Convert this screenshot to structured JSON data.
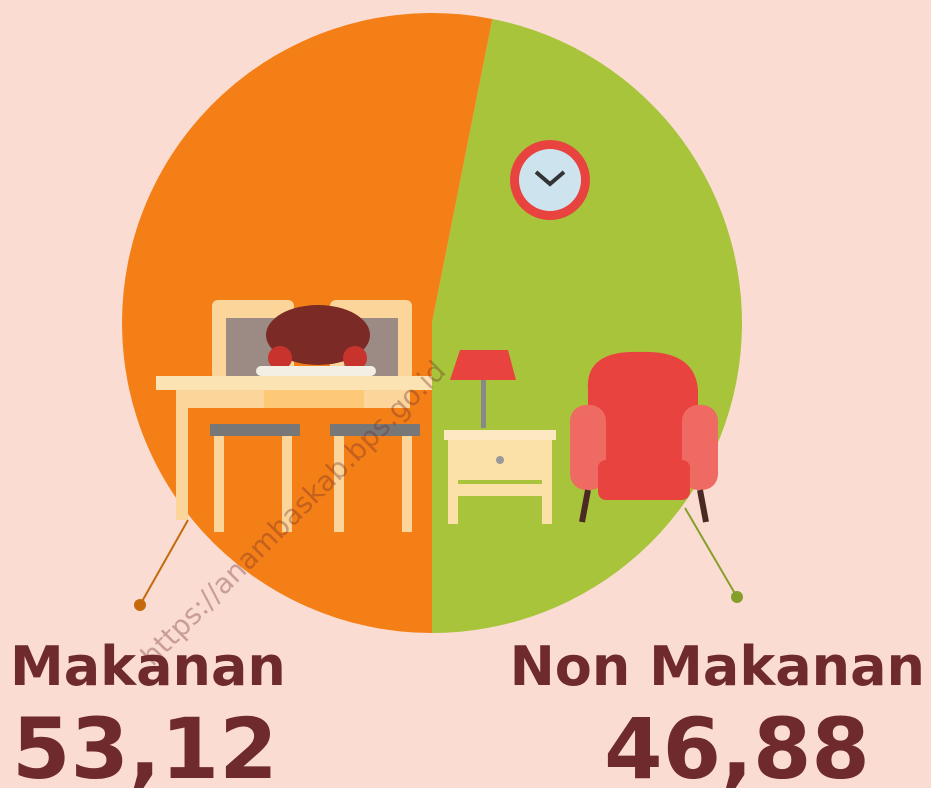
{
  "chart_data": {
    "type": "pie",
    "categories": [
      "Makanan",
      "Non Makanan"
    ],
    "values": [
      53.12,
      46.88
    ],
    "value_labels": [
      "53,12",
      "46,88"
    ],
    "colors": [
      "#f47f16",
      "#a8c43a"
    ],
    "watermark": "https://anambaskab.bps.go.id"
  }
}
